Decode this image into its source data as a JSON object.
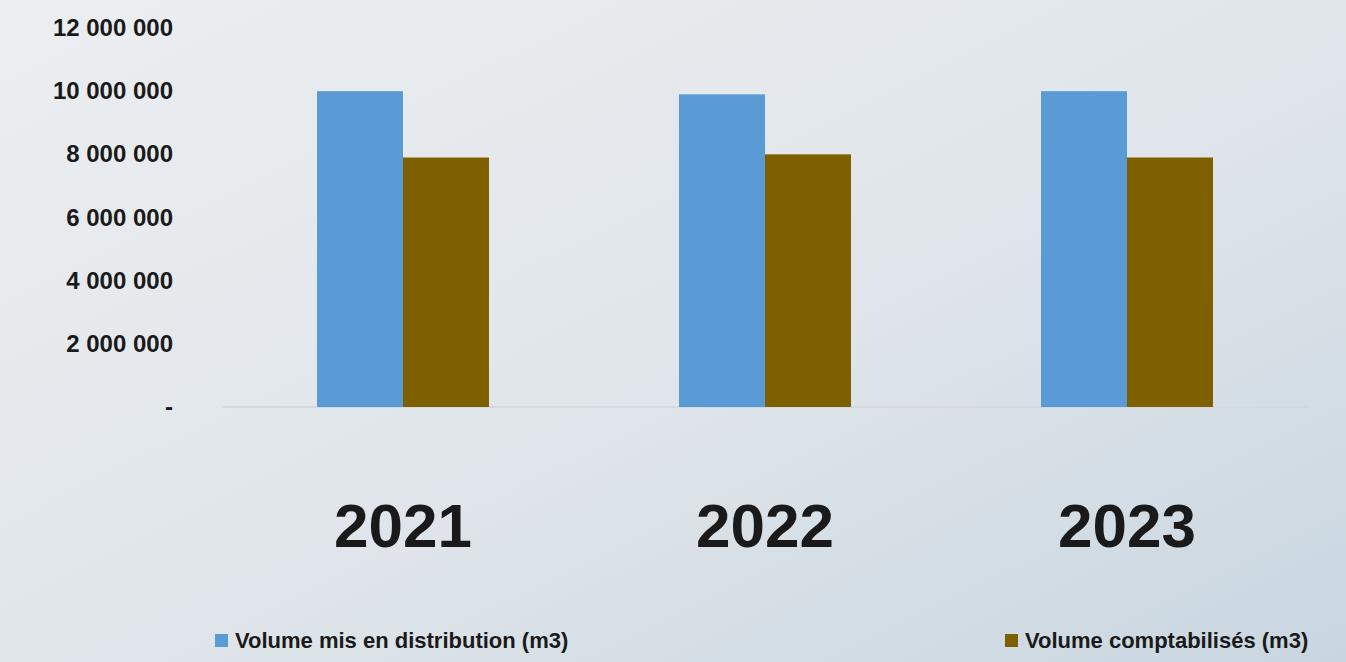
{
  "chart_data": {
    "type": "bar",
    "categories": [
      "2021",
      "2022",
      "2023"
    ],
    "series": [
      {
        "name": "Volume mis en distribution (m3)",
        "color": "#5b9bd5",
        "values": [
          10000000,
          9900000,
          10000000
        ]
      },
      {
        "name": "Volume comptabilisés (m3)",
        "color": "#7f6000",
        "values": [
          7900000,
          8000000,
          7900000
        ]
      }
    ],
    "ylim": [
      0,
      12000000
    ],
    "yticks": [
      {
        "value": 0,
        "label": "-"
      },
      {
        "value": 2000000,
        "label": "2 000 000"
      },
      {
        "value": 4000000,
        "label": "4 000 000"
      },
      {
        "value": 6000000,
        "label": "6 000 000"
      },
      {
        "value": 8000000,
        "label": "8 000 000"
      },
      {
        "value": 10000000,
        "label": "10 000 000"
      },
      {
        "value": 12000000,
        "label": "12 000 000"
      }
    ],
    "grid": false,
    "legend": "bottom"
  }
}
